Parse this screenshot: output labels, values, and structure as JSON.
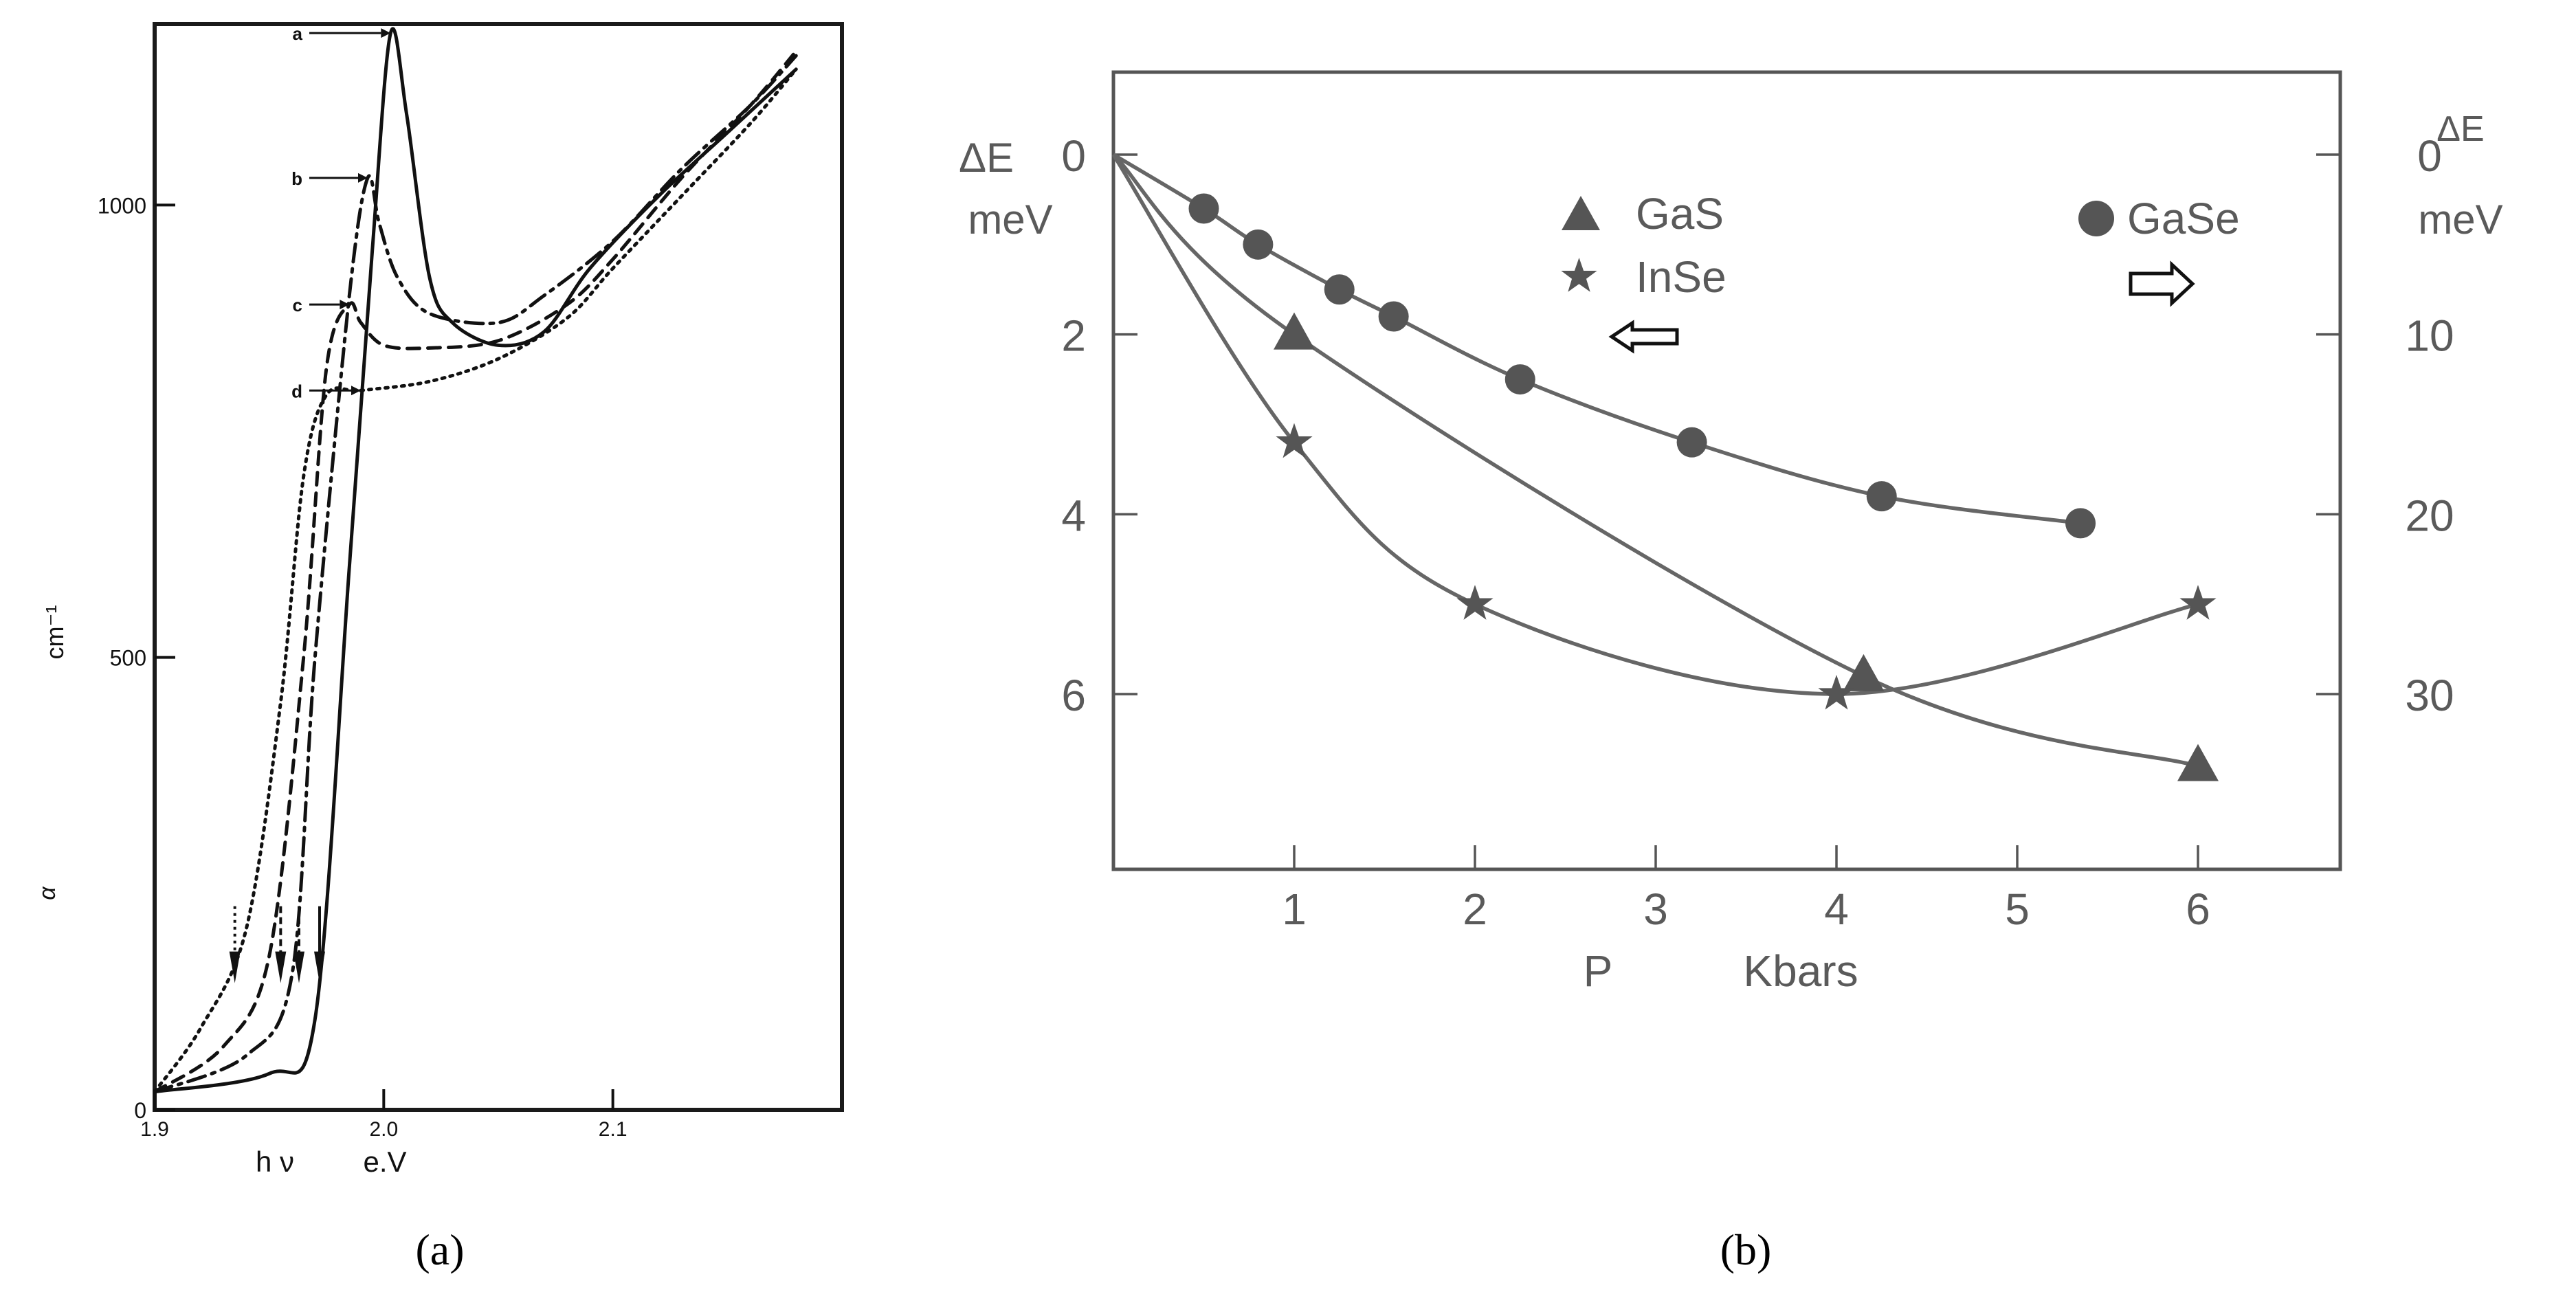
{
  "panel_a": {
    "caption": "(a)",
    "chart_data": {
      "type": "line",
      "xlabel_left": "h ν",
      "xlabel_right": "e.V",
      "ylabel_symbol": "α",
      "ylabel_unit": "cm⁻¹",
      "xlim": [
        1.9,
        2.2
      ],
      "ylim": [
        0,
        1200
      ],
      "x_ticks": [
        "1.9",
        "2.0",
        "2.1"
      ],
      "y_ticks": [
        "0",
        "500",
        "1000"
      ],
      "series": [
        {
          "name": "a",
          "style": "solid",
          "points": [
            [
              1.9,
              20
            ],
            [
              1.95,
              40
            ],
            [
              1.97,
              100
            ],
            [
              1.985,
              600
            ],
            [
              1.995,
              950
            ],
            [
              2.003,
              1190
            ],
            [
              2.01,
              1100
            ],
            [
              2.02,
              920
            ],
            [
              2.03,
              870
            ],
            [
              2.05,
              845
            ],
            [
              2.07,
              860
            ],
            [
              2.09,
              930
            ],
            [
              2.12,
              1010
            ],
            [
              2.15,
              1080
            ],
            [
              2.18,
              1150
            ]
          ]
        },
        {
          "name": "b",
          "style": "dash-dot",
          "points": [
            [
              1.9,
              20
            ],
            [
              1.94,
              60
            ],
            [
              1.96,
              150
            ],
            [
              1.97,
              500
            ],
            [
              1.985,
              900
            ],
            [
              1.993,
              1030
            ],
            [
              1.998,
              980
            ],
            [
              2.006,
              920
            ],
            [
              2.02,
              880
            ],
            [
              2.05,
              870
            ],
            [
              2.07,
              900
            ],
            [
              2.1,
              960
            ],
            [
              2.13,
              1040
            ],
            [
              2.16,
              1110
            ],
            [
              2.18,
              1165
            ]
          ]
        },
        {
          "name": "c",
          "style": "dashed",
          "points": [
            [
              1.9,
              20
            ],
            [
              1.93,
              70
            ],
            [
              1.95,
              170
            ],
            [
              1.965,
              500
            ],
            [
              1.975,
              820
            ],
            [
              1.985,
              890
            ],
            [
              1.99,
              870
            ],
            [
              2.0,
              845
            ],
            [
              2.02,
              842
            ],
            [
              2.05,
              850
            ],
            [
              2.08,
              890
            ],
            [
              2.1,
              940
            ],
            [
              2.13,
              1030
            ],
            [
              2.16,
              1110
            ],
            [
              2.18,
              1170
            ]
          ]
        },
        {
          "name": "d",
          "style": "dotted",
          "points": [
            [
              1.9,
              20
            ],
            [
              1.92,
              90
            ],
            [
              1.94,
              200
            ],
            [
              1.955,
              450
            ],
            [
              1.965,
              700
            ],
            [
              1.975,
              790
            ],
            [
              1.99,
              795
            ],
            [
              2.02,
              805
            ],
            [
              2.05,
              830
            ],
            [
              2.08,
              875
            ],
            [
              2.1,
              930
            ],
            [
              2.13,
              1010
            ],
            [
              2.16,
              1090
            ],
            [
              2.18,
              1150
            ]
          ]
        }
      ],
      "peak_labels": [
        "a",
        "b",
        "c",
        "d"
      ]
    }
  },
  "panel_b": {
    "caption": "(b)",
    "chart_data": {
      "type": "scatter",
      "xlabel": "P",
      "xlabel_unit": "Kbars",
      "ylabel_left_symbol": "ΔE",
      "ylabel_left_unit": "meV",
      "ylabel_right_symbol": "ΔE",
      "ylabel_right_unit": "meV",
      "xlim": [
        0,
        6.8
      ],
      "ylim_left": [
        0,
        7.8
      ],
      "ylim_right": [
        0,
        39
      ],
      "y_inverted": true,
      "x_ticks": [
        "1",
        "2",
        "3",
        "4",
        "5",
        "6"
      ],
      "y_ticks_left": [
        "0",
        "2",
        "4",
        "6"
      ],
      "y_ticks_right": [
        "0",
        "10",
        "20",
        "30"
      ],
      "series": [
        {
          "name": "GaS",
          "marker": "triangle",
          "axis": "left",
          "x": [
            1.0,
            4.15,
            6.0
          ],
          "y": [
            2.0,
            5.8,
            6.8
          ]
        },
        {
          "name": "InSe",
          "marker": "star",
          "axis": "left",
          "x": [
            1.0,
            2.0,
            4.0,
            6.0
          ],
          "y": [
            3.2,
            5.0,
            6.0,
            5.0
          ]
        },
        {
          "name": "GaSe",
          "marker": "circle",
          "axis": "right",
          "x": [
            0.5,
            0.8,
            1.25,
            1.55,
            2.25,
            3.2,
            4.25,
            5.35
          ],
          "y": [
            3.0,
            5.0,
            7.5,
            9.0,
            12.5,
            16.0,
            19.0,
            20.5
          ]
        }
      ],
      "legend": {
        "left_entries": [
          "GaS",
          "InSe"
        ],
        "right_entries": [
          "GaSe"
        ]
      }
    }
  }
}
